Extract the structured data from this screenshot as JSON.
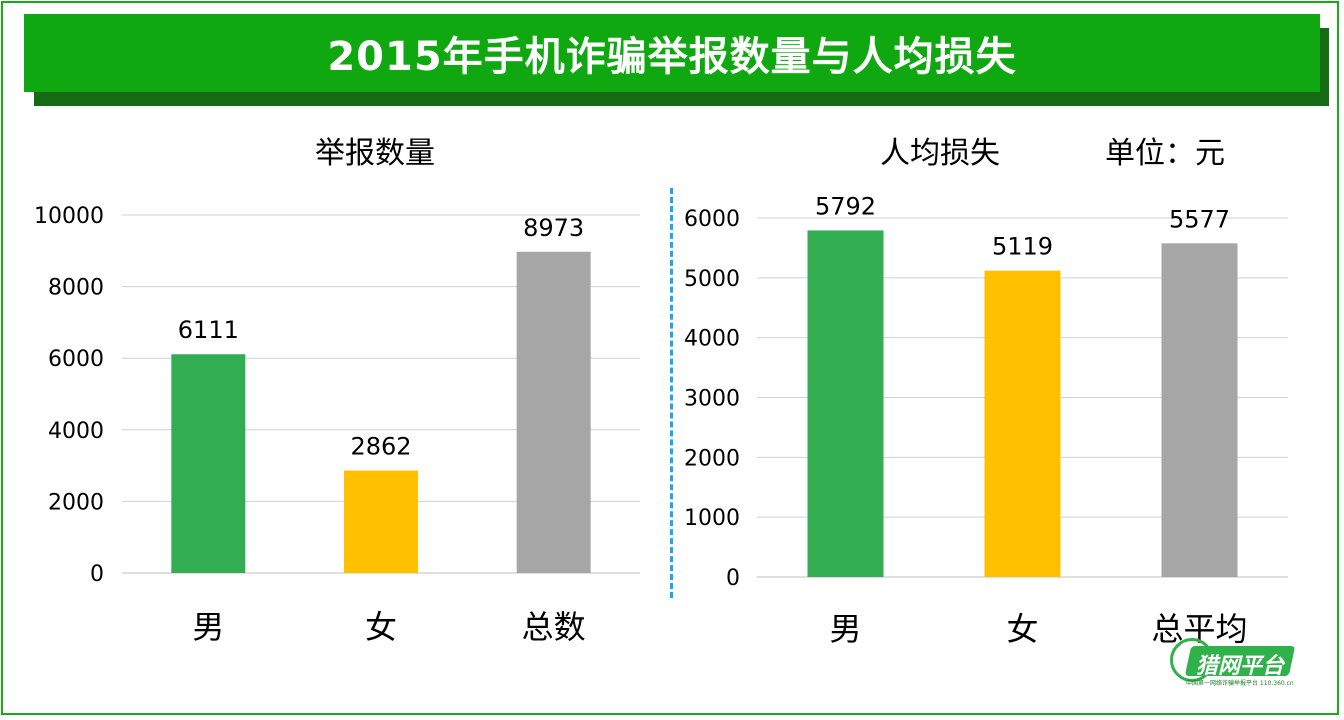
{
  "title": "2015年手机诈骗举报数量与人均损失",
  "logo": {
    "name": "猎网平台",
    "subtitle": "中国第一网络诈骗举报平台 110.360.cn"
  },
  "chart_data": [
    {
      "type": "bar",
      "title": "举报数量",
      "categories": [
        "男",
        "女",
        "总数"
      ],
      "values": [
        6111,
        2862,
        8973
      ],
      "colors": [
        "#33ad52",
        "#ffc000",
        "#a6a6a6"
      ],
      "ylim": [
        0,
        10000
      ],
      "yticks": [
        0,
        2000,
        4000,
        6000,
        8000,
        10000
      ],
      "xlabel": "",
      "ylabel": "",
      "grid": true
    },
    {
      "type": "bar",
      "title": "人均损失",
      "unit_label": "单位：元",
      "categories": [
        "男",
        "女",
        "总平均"
      ],
      "values": [
        5792,
        5119,
        5577
      ],
      "colors": [
        "#33ad52",
        "#ffc000",
        "#a6a6a6"
      ],
      "ylim": [
        0,
        6000
      ],
      "yticks": [
        0,
        1000,
        2000,
        3000,
        4000,
        5000,
        6000
      ],
      "xlabel": "",
      "ylabel": "",
      "grid": true
    }
  ]
}
